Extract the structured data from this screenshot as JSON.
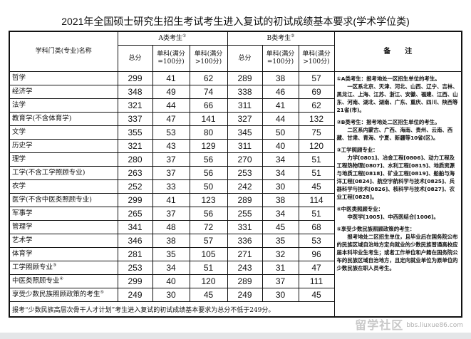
{
  "title": "2021年全国硕士研究生招生考试考生进入复试的初试成绩基本要求(学术学位类)",
  "header": {
    "subject": "学科门类(专业)名称",
    "groupA": "A类考生",
    "groupA_mark": "①",
    "groupB": "B类考生",
    "groupB_mark": "②",
    "total": "总分",
    "single100": "单科(满分=100分)",
    "singleOver100": "单科(满分>100分)",
    "notes": "备　　注"
  },
  "rows": [
    {
      "name": "哲学",
      "mark": "",
      "v": [
        "299",
        "41",
        "62",
        "289",
        "38",
        "57"
      ]
    },
    {
      "name": "经济学",
      "mark": "",
      "v": [
        "348",
        "49",
        "74",
        "338",
        "46",
        "69"
      ]
    },
    {
      "name": "法学",
      "mark": "",
      "v": [
        "321",
        "44",
        "66",
        "311",
        "41",
        "62"
      ]
    },
    {
      "name": "教育学(不含体育学)",
      "mark": "",
      "v": [
        "337",
        "47",
        "141",
        "327",
        "44",
        "132"
      ]
    },
    {
      "name": "文学",
      "mark": "",
      "v": [
        "355",
        "53",
        "80",
        "345",
        "50",
        "75"
      ]
    },
    {
      "name": "历史学",
      "mark": "",
      "v": [
        "321",
        "43",
        "129",
        "311",
        "40",
        "120"
      ]
    },
    {
      "name": "理学",
      "mark": "",
      "v": [
        "280",
        "37",
        "56",
        "270",
        "34",
        "51"
      ]
    },
    {
      "name": "工学(不含工学照顾专业)",
      "mark": "",
      "v": [
        "263",
        "37",
        "56",
        "253",
        "34",
        "51"
      ]
    },
    {
      "name": "农学",
      "mark": "",
      "v": [
        "252",
        "33",
        "50",
        "242",
        "30",
        "45"
      ]
    },
    {
      "name": "医学(不含中医类照顾专业)",
      "mark": "",
      "v": [
        "299",
        "41",
        "123",
        "289",
        "38",
        "114"
      ]
    },
    {
      "name": "军事学",
      "mark": "",
      "v": [
        "265",
        "37",
        "56",
        "255",
        "34",
        "51"
      ]
    },
    {
      "name": "管理学",
      "mark": "",
      "v": [
        "341",
        "48",
        "72",
        "331",
        "45",
        "68"
      ]
    },
    {
      "name": "艺术学",
      "mark": "",
      "v": [
        "346",
        "38",
        "57",
        "336",
        "35",
        "53"
      ]
    },
    {
      "name": "体育学",
      "mark": "",
      "v": [
        "281",
        "35",
        "105",
        "271",
        "32",
        "96"
      ]
    },
    {
      "name": "工学照顾专业",
      "mark": "③",
      "v": [
        "253",
        "34",
        "51",
        "243",
        "31",
        "47"
      ]
    },
    {
      "name": "中医类照顾专业",
      "mark": "④",
      "v": [
        "299",
        "40",
        "120",
        "289",
        "37",
        "111"
      ]
    },
    {
      "name": "享受少数民族照顾政策的考生",
      "mark": "⑤",
      "v": [
        "249",
        "30",
        "45",
        "249",
        "30",
        "45"
      ]
    }
  ],
  "footer": "报考“少数民族高层次骨干人才计划”考生进入复试的初试成绩基本要求为总分不低于249分。",
  "notes": [
    {
      "head": "①A类考生：报考地处一区招生单位的考生。",
      "body": "一区系北京、天津、河北、山西、辽宁、吉林、黑龙江、上海、江苏、浙江、安徽、福建、江西、山东、河南、湖北、湖南、广东、重庆、四川、陕西等21省(市)。"
    },
    {
      "head": "②B类考生：报考地处二区招生单位的考生。",
      "body": "二区系内蒙古、广西、海南、贵州、云南、西藏、甘肃、青海、宁夏、新疆等10省(区)。"
    },
    {
      "head": "③工学照顾专业：",
      "body": "力学[0801]、冶金工程[0806]、动力工程及工程热物理[0807]、水利工程[0815]、地质资源与地质工程[0818]、矿业工程[0819]、船舶与海洋工程[0824]、航空宇航科学与技术[0825]、兵器科学与技术[0826]、核科学与技术[0827]、农业工程[0828]。"
    },
    {
      "head": "④中医类照顾专业：",
      "body": "中医学[1005]、中西医结合[1006]。"
    },
    {
      "head": "⑤享受少数民族照顾政策的考生：",
      "body": "报考地处二区招生单位，且毕业后在国务院公布的民族区域自治地方定向就业的少数民族普通高校应届本科毕业生考生；或者工作单位和户籍在国务院公布的民族区域自治地方，且定向就业单位为原单位的少数民族在职人员考生。"
    }
  ],
  "watermark": {
    "text": "留学社区",
    "url": "bbs.liuxue86.com"
  }
}
